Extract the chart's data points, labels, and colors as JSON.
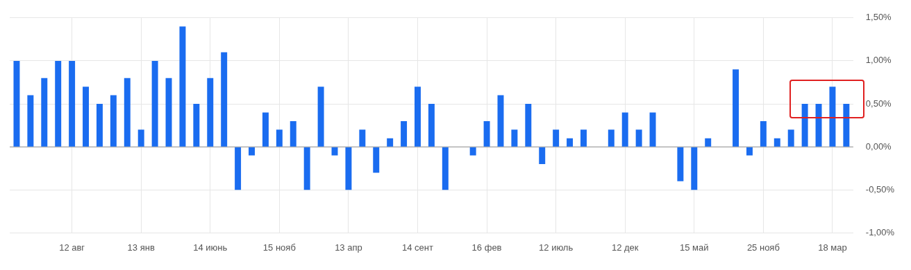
{
  "chart_data": {
    "type": "bar",
    "categories": [
      null,
      null,
      null,
      null,
      "12 авг",
      null,
      null,
      null,
      null,
      "13 янв",
      null,
      null,
      null,
      null,
      "14 июнь",
      null,
      null,
      null,
      null,
      "15 нояб",
      null,
      null,
      null,
      null,
      "13 апр",
      null,
      null,
      null,
      null,
      "14 сент",
      null,
      null,
      null,
      null,
      "16 фев",
      null,
      null,
      null,
      null,
      "12 июль",
      null,
      null,
      null,
      null,
      "12 дек",
      null,
      null,
      null,
      null,
      "15 май",
      null,
      null,
      null,
      null,
      "25 нояб",
      null,
      null,
      null,
      null,
      "18 мар",
      null
    ],
    "values": [
      1.0,
      0.6,
      0.8,
      1.0,
      1.0,
      0.7,
      0.5,
      0.6,
      0.8,
      0.2,
      1.0,
      0.8,
      1.4,
      0.5,
      0.8,
      1.1,
      -0.5,
      -0.1,
      0.4,
      0.2,
      0.3,
      -0.5,
      0.7,
      -0.1,
      -0.5,
      0.2,
      -0.3,
      0.1,
      0.3,
      0.7,
      0.5,
      -0.5,
      0,
      -0.1,
      0.3,
      0.6,
      0.2,
      0.5,
      -0.2,
      0.2,
      0.1,
      0.2,
      0,
      0.2,
      0.4,
      0.2,
      0.4,
      0,
      -0.4,
      -0.5,
      0.1,
      0,
      0.9,
      -0.1,
      0.3,
      0.1,
      0.2,
      0.5,
      0.5,
      0.7,
      0.5
    ],
    "color": "#1a6cf0",
    "ylim": [
      -1,
      1.5
    ],
    "yticks": [
      {
        "value": -1,
        "label": "-1,00%"
      },
      {
        "value": -0.5,
        "label": "-0,50%"
      },
      {
        "value": 0,
        "label": "0,00%"
      },
      {
        "value": 0.5,
        "label": "0,50%"
      },
      {
        "value": 1,
        "label": "1,00%"
      },
      {
        "value": 1.5,
        "label": "1,50%"
      }
    ],
    "grid": true
  }
}
